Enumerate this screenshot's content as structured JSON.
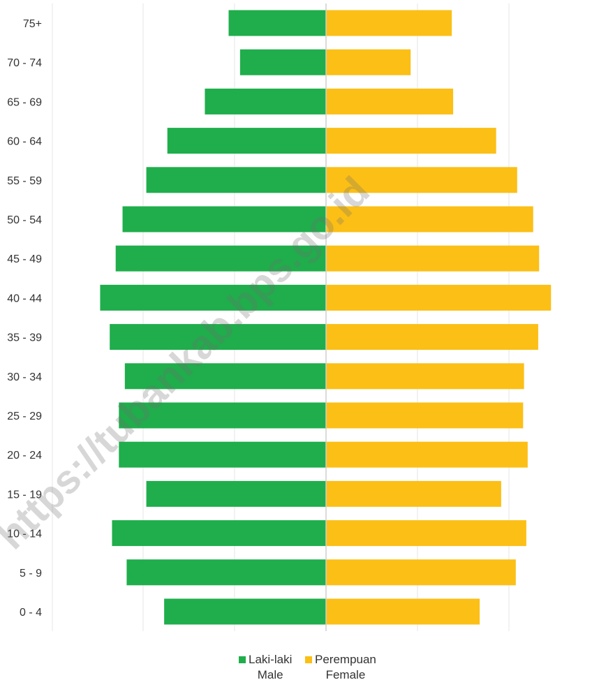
{
  "chart_data": {
    "type": "bar",
    "orientation": "horizontal",
    "layout": "population-pyramid",
    "categories": [
      "75+",
      "70 - 74",
      "65 - 69",
      "60 - 64",
      "55 - 59",
      "50 - 54",
      "45 - 49",
      "40 - 44",
      "35 - 39",
      "30 - 34",
      "25 - 29",
      "20 - 24",
      "15 - 19",
      "10 - 14",
      "5 - 9",
      "0 - 4"
    ],
    "series": [
      {
        "name": "Laki-laki",
        "name_en": "Male",
        "color": "#1fae4b",
        "values": [
          2.13,
          1.88,
          2.65,
          3.47,
          3.93,
          4.45,
          4.6,
          4.94,
          4.73,
          4.4,
          4.53,
          4.53,
          3.93,
          4.68,
          4.36,
          3.54
        ]
      },
      {
        "name": "Perempuan",
        "name_en": "Female",
        "color": "#fbbf16",
        "values": [
          2.75,
          1.85,
          2.78,
          3.72,
          4.18,
          4.53,
          4.66,
          4.92,
          4.64,
          4.33,
          4.31,
          4.41,
          3.83,
          4.38,
          4.15,
          3.36
        ]
      }
    ],
    "xlim": [
      -5,
      5
    ],
    "grid_x": true,
    "legend": "bottom-center"
  },
  "legend": {
    "male_label": "Laki-laki",
    "male_label_en": "Male",
    "female_label": "Perempuan",
    "female_label_en": "Female"
  },
  "watermark": {
    "text": "https://tubankab.bps.go.id"
  }
}
